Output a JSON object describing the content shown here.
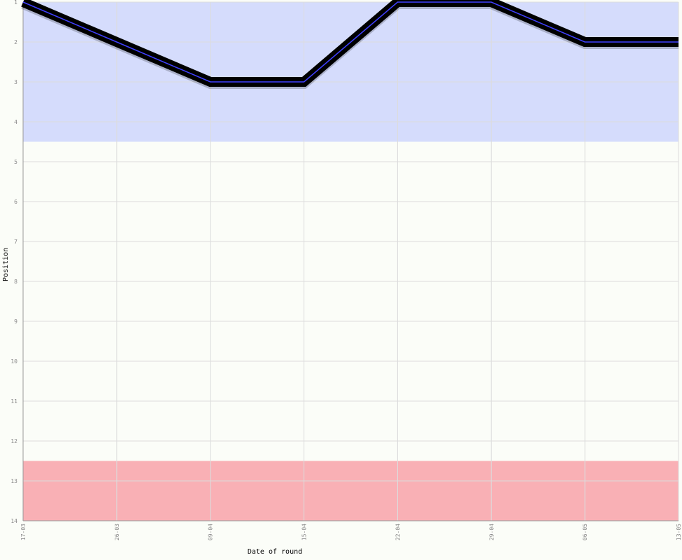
{
  "chart_data": {
    "type": "line",
    "x_label": "Date of round",
    "y_label": "Position",
    "categories": [
      "17-03",
      "26-03",
      "09-04",
      "15-04",
      "22-04",
      "29-04",
      "06-05",
      "13-05"
    ],
    "series": [
      {
        "color": "#4040ff",
        "shadow_color": "#000000",
        "values": [
          1,
          2,
          3,
          3,
          1,
          1,
          2,
          2
        ]
      }
    ],
    "ylim": [
      1,
      14
    ],
    "invert_y": true,
    "yticks": [
      1,
      2,
      3,
      4,
      5,
      6,
      7,
      8,
      9,
      10,
      11,
      12,
      13,
      14
    ],
    "bands": [
      {
        "from": 1,
        "to": 4.5,
        "color": "#d5dcfc"
      },
      {
        "from": 12.5,
        "to": 14,
        "color": "#f9b0b5"
      }
    ],
    "grid": true
  }
}
